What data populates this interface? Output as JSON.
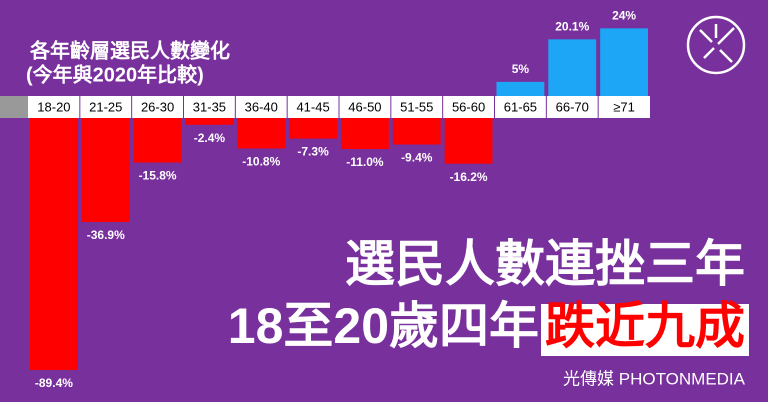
{
  "chart_data": {
    "type": "bar",
    "title": "各年齡層選民人數變化",
    "subtitle": "(今年與2020年比較)",
    "categories": [
      "18-20",
      "21-25",
      "26-30",
      "31-35",
      "36-40",
      "41-45",
      "46-50",
      "51-55",
      "56-60",
      "61-65",
      "66-70",
      "≥71"
    ],
    "values": [
      -89.4,
      -36.9,
      -15.8,
      -2.4,
      -10.8,
      -7.3,
      -11.0,
      -9.4,
      -16.2,
      5,
      20.1,
      24
    ],
    "value_labels": [
      "-89.4%",
      "-36.9%",
      "-15.8%",
      "-2.4%",
      "-10.8%",
      "-7.3%",
      "-11.0%",
      "-9.4%",
      "-16.2%",
      "5%",
      "20.1%",
      "24%"
    ],
    "negative_color": "#ff0000",
    "positive_color": "#1ea6f6"
  },
  "headline": {
    "line1": "選民人數連挫三年",
    "line2": "18至20歲四年",
    "highlight": "跌近九成"
  },
  "brand": "光傳媒 PHOTONMEDIA"
}
